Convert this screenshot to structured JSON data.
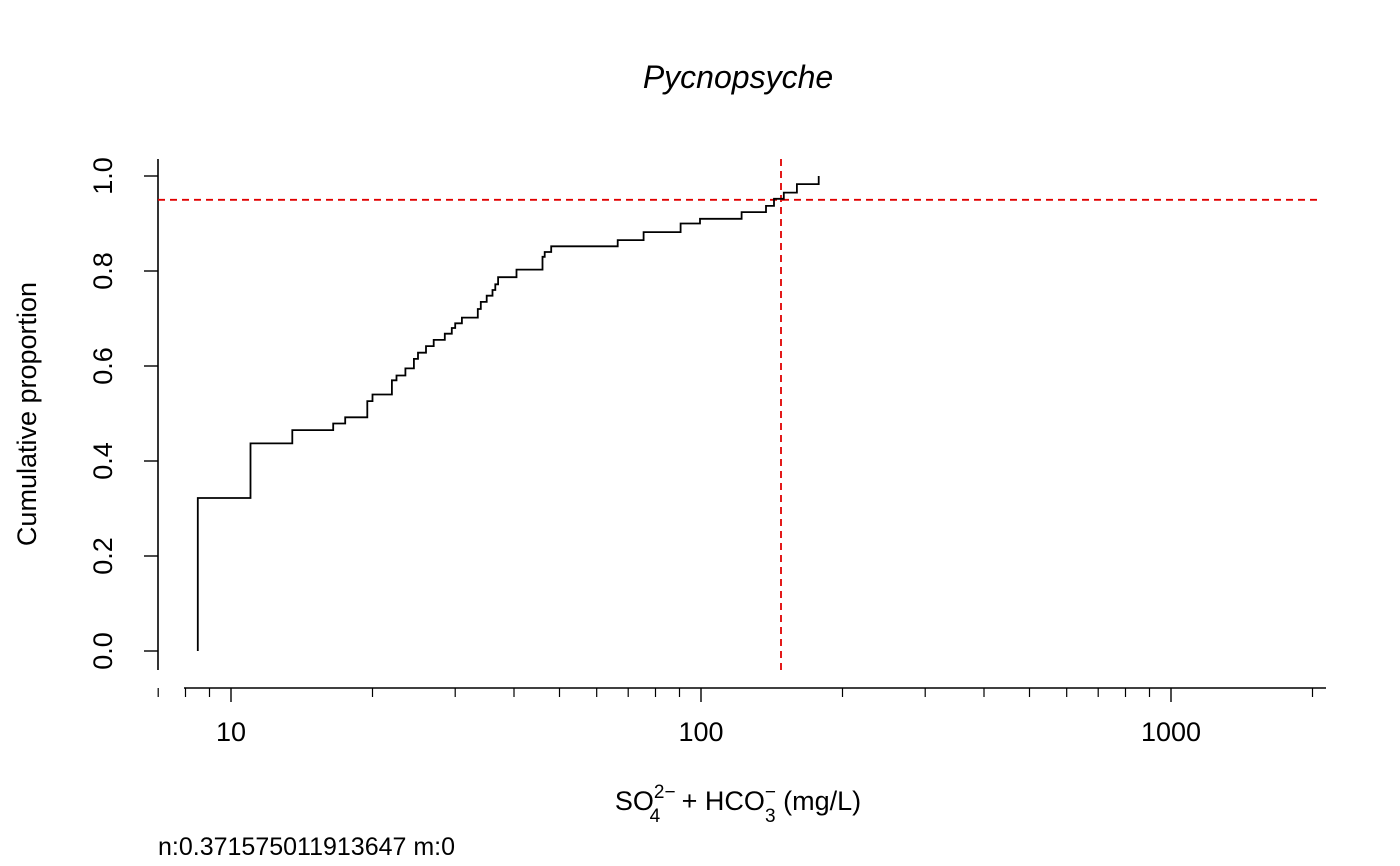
{
  "chart_data": {
    "type": "line",
    "step": true,
    "title": "Pycnopsyche",
    "xlabel": {
      "part1": "SO",
      "part1_sup": "2−",
      "part1_sub": "4",
      "part2": " + HCO",
      "part2_sup": "−",
      "part2_sub": "3",
      "part3": " (mg/L)"
    },
    "ylabel": "Cumulative proportion",
    "x_scale": "log",
    "xlim": [
      6.9,
      2000
    ],
    "ylim": [
      0,
      1
    ],
    "x_ticks": [
      10,
      100,
      1000
    ],
    "x_tick_labels": [
      "10",
      "100",
      "1000"
    ],
    "y_ticks": [
      0,
      0.2,
      0.4,
      0.6,
      0.8,
      1.0
    ],
    "y_tick_labels": [
      "0.0",
      "0.2",
      "0.4",
      "0.6",
      "0.8",
      "1.0"
    ],
    "series": [
      {
        "color": "#000000",
        "points": [
          [
            8.5,
            0.0
          ],
          [
            8.5,
            0.322
          ],
          [
            11.0,
            0.437
          ],
          [
            13.5,
            0.465
          ],
          [
            16.5,
            0.479
          ],
          [
            17.5,
            0.492
          ],
          [
            19.5,
            0.526
          ],
          [
            20.0,
            0.54
          ],
          [
            22.0,
            0.57
          ],
          [
            22.5,
            0.58
          ],
          [
            23.5,
            0.595
          ],
          [
            24.5,
            0.615
          ],
          [
            25.0,
            0.628
          ],
          [
            26.0,
            0.642
          ],
          [
            27.0,
            0.655
          ],
          [
            28.5,
            0.668
          ],
          [
            29.5,
            0.68
          ],
          [
            30.0,
            0.69
          ],
          [
            31.0,
            0.702
          ],
          [
            33.5,
            0.72
          ],
          [
            34.0,
            0.735
          ],
          [
            35.0,
            0.748
          ],
          [
            36.0,
            0.76
          ],
          [
            36.5,
            0.772
          ],
          [
            37.0,
            0.787
          ],
          [
            40.5,
            0.803
          ],
          [
            46.0,
            0.83
          ],
          [
            46.5,
            0.84
          ],
          [
            48.0,
            0.852
          ],
          [
            66.5,
            0.865
          ],
          [
            75.5,
            0.882
          ],
          [
            90.5,
            0.9
          ],
          [
            99.5,
            0.91
          ],
          [
            122.0,
            0.924
          ],
          [
            137.5,
            0.937
          ],
          [
            143.0,
            0.952
          ],
          [
            150.0,
            0.965
          ],
          [
            160.0,
            0.983
          ],
          [
            178.0,
            1.0
          ]
        ],
        "end_x": 178.0
      }
    ],
    "reference_lines": [
      {
        "orientation": "horizontal",
        "value": 0.95,
        "color": "#e00000",
        "style": "dashed"
      },
      {
        "orientation": "vertical",
        "value": 148,
        "color": "#e00000",
        "style": "dashed"
      }
    ],
    "annotation": "n:0.371575011913647 m:0"
  }
}
